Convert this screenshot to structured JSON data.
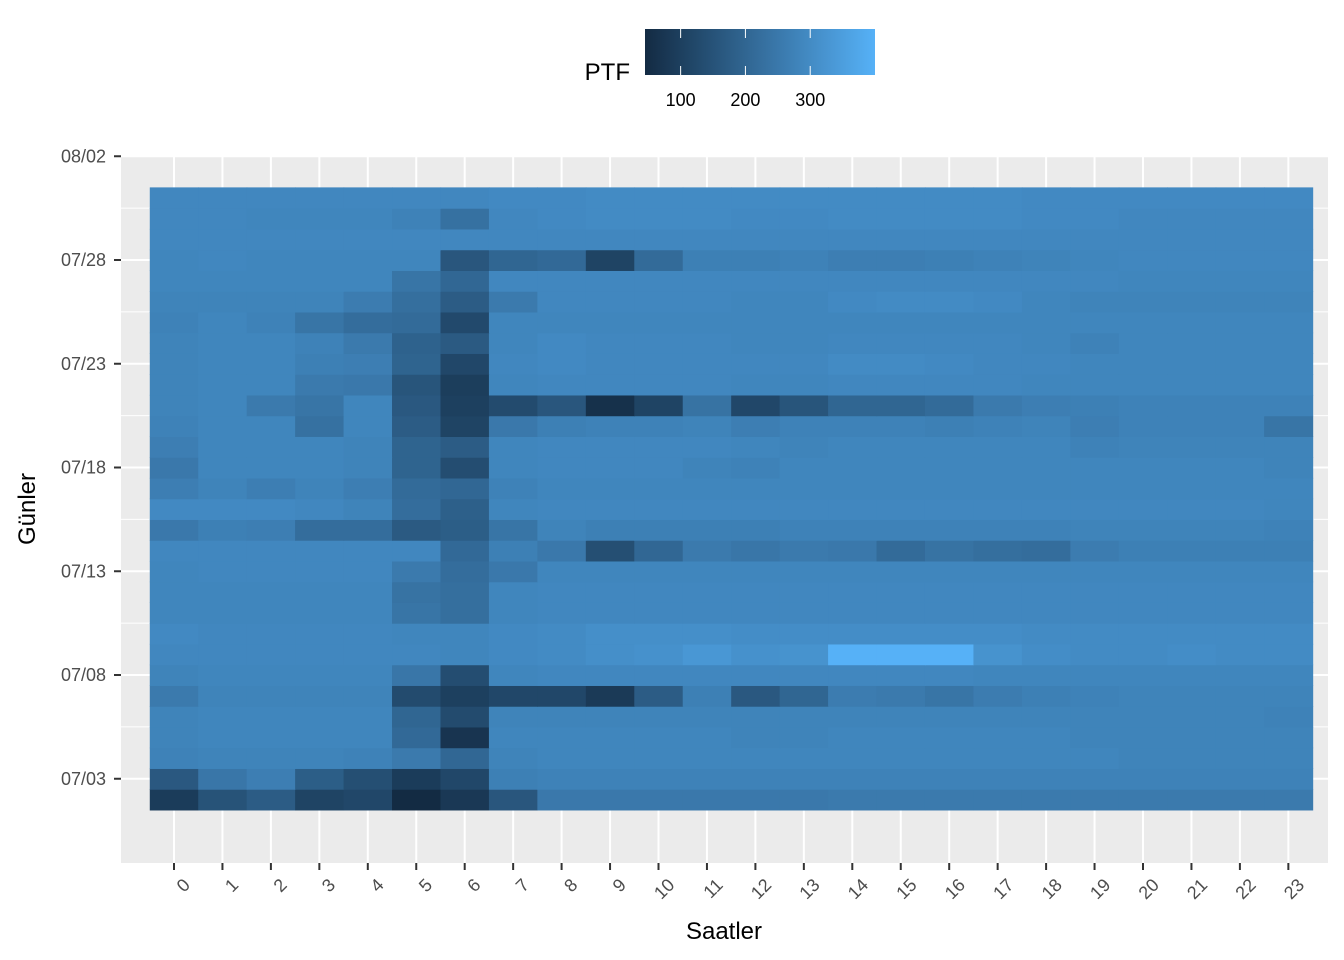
{
  "chart_data": {
    "type": "heatmap",
    "xlabel": "Saatler",
    "ylabel": "Günler",
    "x_categories": [
      "0",
      "1",
      "2",
      "3",
      "4",
      "5",
      "6",
      "7",
      "8",
      "9",
      "10",
      "11",
      "12",
      "13",
      "14",
      "15",
      "16",
      "17",
      "18",
      "19",
      "20",
      "21",
      "22",
      "23"
    ],
    "y_axis": {
      "type": "date",
      "min": "2024-07-01",
      "max": "2024-08-02",
      "tick_labels": [
        "07/03",
        "07/08",
        "07/13",
        "07/18",
        "07/23",
        "07/28",
        "08/02"
      ]
    },
    "legend": {
      "title": "PTF",
      "tick_values": [
        100,
        200,
        300
      ],
      "value_range": [
        45,
        400
      ],
      "color_low": "#132B43",
      "color_high": "#56B1F7",
      "placement": "top"
    },
    "grid": true,
    "panel_background": "#EBEBEB",
    "days": [
      {
        "date": "2024-07-02",
        "values": [
          90,
          150,
          175,
          110,
          120,
          45,
          80,
          160,
          250,
          250,
          250,
          250,
          250,
          250,
          255,
          255,
          255,
          255,
          255,
          255,
          255,
          255,
          255,
          255
        ]
      },
      {
        "date": "2024-07-03",
        "values": [
          165,
          245,
          265,
          180,
          140,
          90,
          120,
          270,
          275,
          275,
          275,
          275,
          275,
          275,
          275,
          275,
          275,
          275,
          275,
          275,
          275,
          275,
          275,
          275
        ]
      },
      {
        "date": "2024-07-04",
        "values": [
          275,
          280,
          280,
          280,
          275,
          255,
          205,
          280,
          285,
          285,
          285,
          285,
          285,
          285,
          285,
          285,
          285,
          285,
          285,
          285,
          280,
          280,
          280,
          280
        ]
      },
      {
        "date": "2024-07-05",
        "values": [
          280,
          285,
          285,
          285,
          285,
          210,
          70,
          285,
          285,
          285,
          285,
          285,
          280,
          280,
          285,
          285,
          285,
          285,
          285,
          280,
          280,
          280,
          280,
          280
        ]
      },
      {
        "date": "2024-07-06",
        "values": [
          280,
          285,
          285,
          285,
          285,
          200,
          130,
          280,
          280,
          280,
          280,
          280,
          280,
          280,
          280,
          280,
          280,
          280,
          280,
          280,
          280,
          280,
          280,
          275
        ]
      },
      {
        "date": "2024-07-07",
        "values": [
          255,
          280,
          280,
          280,
          280,
          130,
          100,
          120,
          120,
          85,
          175,
          270,
          165,
          200,
          260,
          255,
          240,
          260,
          270,
          275,
          280,
          280,
          280,
          280
        ]
      },
      {
        "date": "2024-07-08",
        "values": [
          280,
          285,
          285,
          285,
          285,
          245,
          135,
          285,
          290,
          290,
          290,
          290,
          290,
          290,
          290,
          290,
          290,
          285,
          285,
          285,
          285,
          285,
          285,
          285
        ]
      },
      {
        "date": "2024-07-09",
        "values": [
          290,
          290,
          290,
          290,
          290,
          290,
          285,
          295,
          300,
          310,
          315,
          330,
          315,
          320,
          400,
          400,
          400,
          320,
          305,
          300,
          300,
          305,
          300,
          300
        ]
      },
      {
        "date": "2024-07-10",
        "values": [
          295,
          290,
          290,
          290,
          290,
          285,
          285,
          295,
          300,
          310,
          310,
          310,
          305,
          305,
          305,
          305,
          305,
          305,
          300,
          300,
          300,
          300,
          300,
          300
        ]
      },
      {
        "date": "2024-07-11",
        "values": [
          285,
          285,
          285,
          285,
          285,
          240,
          225,
          285,
          290,
          290,
          290,
          290,
          290,
          290,
          290,
          290,
          290,
          290,
          290,
          290,
          290,
          290,
          290,
          290
        ]
      },
      {
        "date": "2024-07-12",
        "values": [
          285,
          285,
          285,
          285,
          285,
          235,
          225,
          285,
          290,
          290,
          290,
          290,
          290,
          290,
          290,
          290,
          290,
          290,
          290,
          290,
          290,
          290,
          290,
          290
        ]
      },
      {
        "date": "2024-07-13",
        "values": [
          285,
          290,
          290,
          290,
          290,
          255,
          220,
          250,
          285,
          285,
          285,
          285,
          285,
          285,
          285,
          285,
          285,
          285,
          285,
          285,
          285,
          285,
          285,
          285
        ]
      },
      {
        "date": "2024-07-14",
        "values": [
          290,
          290,
          290,
          290,
          290,
          290,
          210,
          270,
          250,
          140,
          205,
          255,
          245,
          255,
          250,
          215,
          235,
          225,
          220,
          260,
          270,
          270,
          270,
          270
        ]
      },
      {
        "date": "2024-07-15",
        "values": [
          250,
          270,
          265,
          220,
          220,
          170,
          180,
          240,
          280,
          270,
          270,
          270,
          270,
          275,
          275,
          275,
          275,
          275,
          275,
          280,
          280,
          280,
          280,
          275
        ]
      },
      {
        "date": "2024-07-16",
        "values": [
          295,
          295,
          295,
          290,
          280,
          220,
          185,
          285,
          290,
          290,
          290,
          290,
          290,
          290,
          290,
          290,
          290,
          290,
          290,
          290,
          290,
          290,
          290,
          285
        ]
      },
      {
        "date": "2024-07-17",
        "values": [
          265,
          280,
          265,
          280,
          265,
          215,
          205,
          275,
          285,
          285,
          285,
          285,
          285,
          285,
          285,
          285,
          285,
          285,
          285,
          285,
          285,
          285,
          285,
          285
        ]
      },
      {
        "date": "2024-07-18",
        "values": [
          250,
          285,
          285,
          285,
          280,
          195,
          135,
          285,
          290,
          290,
          290,
          280,
          275,
          285,
          285,
          285,
          285,
          285,
          285,
          285,
          285,
          285,
          285,
          280
        ]
      },
      {
        "date": "2024-07-19",
        "values": [
          265,
          285,
          285,
          285,
          280,
          195,
          175,
          285,
          290,
          290,
          290,
          290,
          285,
          280,
          285,
          285,
          285,
          285,
          285,
          275,
          280,
          280,
          280,
          280
        ]
      },
      {
        "date": "2024-07-20",
        "values": [
          275,
          285,
          285,
          230,
          285,
          175,
          110,
          250,
          270,
          275,
          275,
          280,
          265,
          275,
          275,
          275,
          270,
          275,
          280,
          265,
          275,
          275,
          275,
          240
        ]
      },
      {
        "date": "2024-07-21",
        "values": [
          280,
          285,
          255,
          240,
          285,
          165,
          100,
          130,
          160,
          60,
          110,
          235,
          120,
          155,
          200,
          200,
          215,
          255,
          265,
          270,
          275,
          275,
          275,
          275
        ]
      },
      {
        "date": "2024-07-22",
        "values": [
          280,
          285,
          285,
          255,
          250,
          155,
          95,
          285,
          290,
          290,
          290,
          290,
          285,
          285,
          290,
          290,
          290,
          290,
          285,
          285,
          285,
          285,
          285,
          285
        ]
      },
      {
        "date": "2024-07-23",
        "values": [
          280,
          285,
          285,
          270,
          265,
          195,
          120,
          290,
          295,
          290,
          290,
          290,
          290,
          290,
          300,
          300,
          295,
          290,
          290,
          285,
          285,
          285,
          285,
          285
        ]
      },
      {
        "date": "2024-07-24",
        "values": [
          280,
          285,
          285,
          275,
          255,
          190,
          170,
          285,
          295,
          290,
          290,
          290,
          285,
          285,
          290,
          290,
          290,
          290,
          285,
          275,
          285,
          285,
          285,
          285
        ]
      },
      {
        "date": "2024-07-25",
        "values": [
          275,
          285,
          275,
          240,
          220,
          215,
          125,
          285,
          285,
          285,
          285,
          285,
          285,
          285,
          285,
          285,
          285,
          285,
          285,
          285,
          285,
          285,
          285,
          285
        ]
      },
      {
        "date": "2024-07-26",
        "values": [
          280,
          280,
          280,
          280,
          260,
          225,
          175,
          255,
          290,
          290,
          290,
          290,
          285,
          285,
          295,
          300,
          300,
          295,
          285,
          280,
          280,
          280,
          280,
          280
        ]
      },
      {
        "date": "2024-07-27",
        "values": [
          285,
          285,
          285,
          285,
          285,
          240,
          205,
          290,
          290,
          290,
          290,
          290,
          290,
          290,
          290,
          290,
          290,
          290,
          290,
          290,
          285,
          285,
          285,
          285
        ]
      },
      {
        "date": "2024-07-28",
        "values": [
          285,
          290,
          285,
          285,
          285,
          285,
          160,
          200,
          210,
          110,
          215,
          270,
          270,
          275,
          265,
          265,
          270,
          275,
          280,
          285,
          290,
          290,
          290,
          290
        ]
      },
      {
        "date": "2024-07-29",
        "values": [
          290,
          290,
          290,
          290,
          290,
          290,
          290,
          290,
          290,
          290,
          290,
          290,
          290,
          290,
          290,
          290,
          290,
          290,
          290,
          290,
          290,
          290,
          290,
          290
        ]
      },
      {
        "date": "2024-07-30",
        "values": [
          290,
          290,
          285,
          285,
          285,
          275,
          230,
          290,
          295,
          300,
          300,
          300,
          295,
          295,
          300,
          300,
          300,
          300,
          295,
          295,
          290,
          290,
          290,
          290
        ]
      },
      {
        "date": "2024-07-31",
        "values": [
          290,
          290,
          290,
          290,
          290,
          290,
          290,
          295,
          295,
          300,
          300,
          300,
          300,
          300,
          300,
          300,
          300,
          300,
          295,
          295,
          295,
          295,
          295,
          295
        ]
      }
    ]
  }
}
